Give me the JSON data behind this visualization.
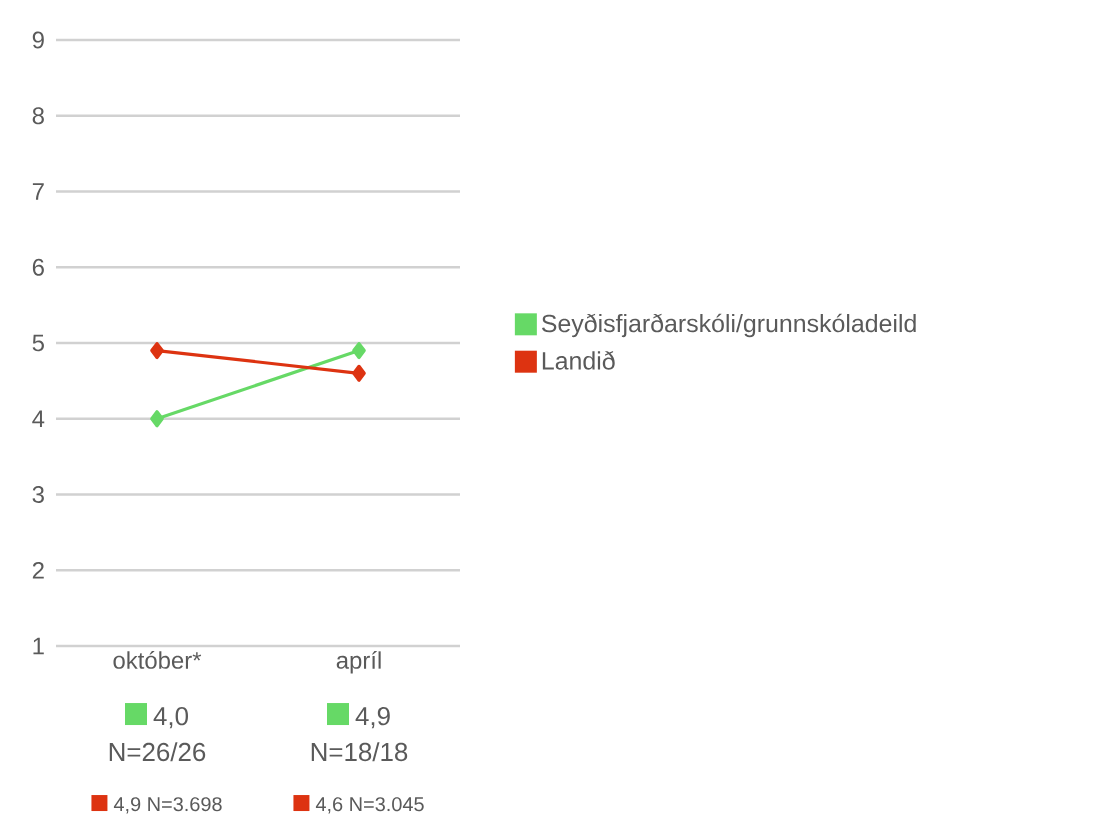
{
  "chart_data": {
    "type": "line",
    "categories": [
      "október*",
      "apríl"
    ],
    "series": [
      {
        "name": "Seyðisfjarðarskóli/grunnskóladeild",
        "color": "#66d966",
        "values": [
          4.0,
          4.9
        ],
        "value_labels": [
          "4,0",
          "4,9"
        ]
      },
      {
        "name": "Landið",
        "color": "#dd3311",
        "values": [
          4.9,
          4.6
        ],
        "value_labels": [
          "4,9",
          "4,6"
        ]
      }
    ],
    "annotations": [
      "N=26/26",
      "N=18/18",
      "N=3.698",
      "N=3.045"
    ],
    "ylim": [
      1,
      9
    ],
    "yticks": [
      1,
      2,
      3,
      4,
      5,
      6,
      7,
      8,
      9
    ],
    "grid": "y",
    "legend": "right",
    "marker": "diamond",
    "line_style": "solid"
  }
}
